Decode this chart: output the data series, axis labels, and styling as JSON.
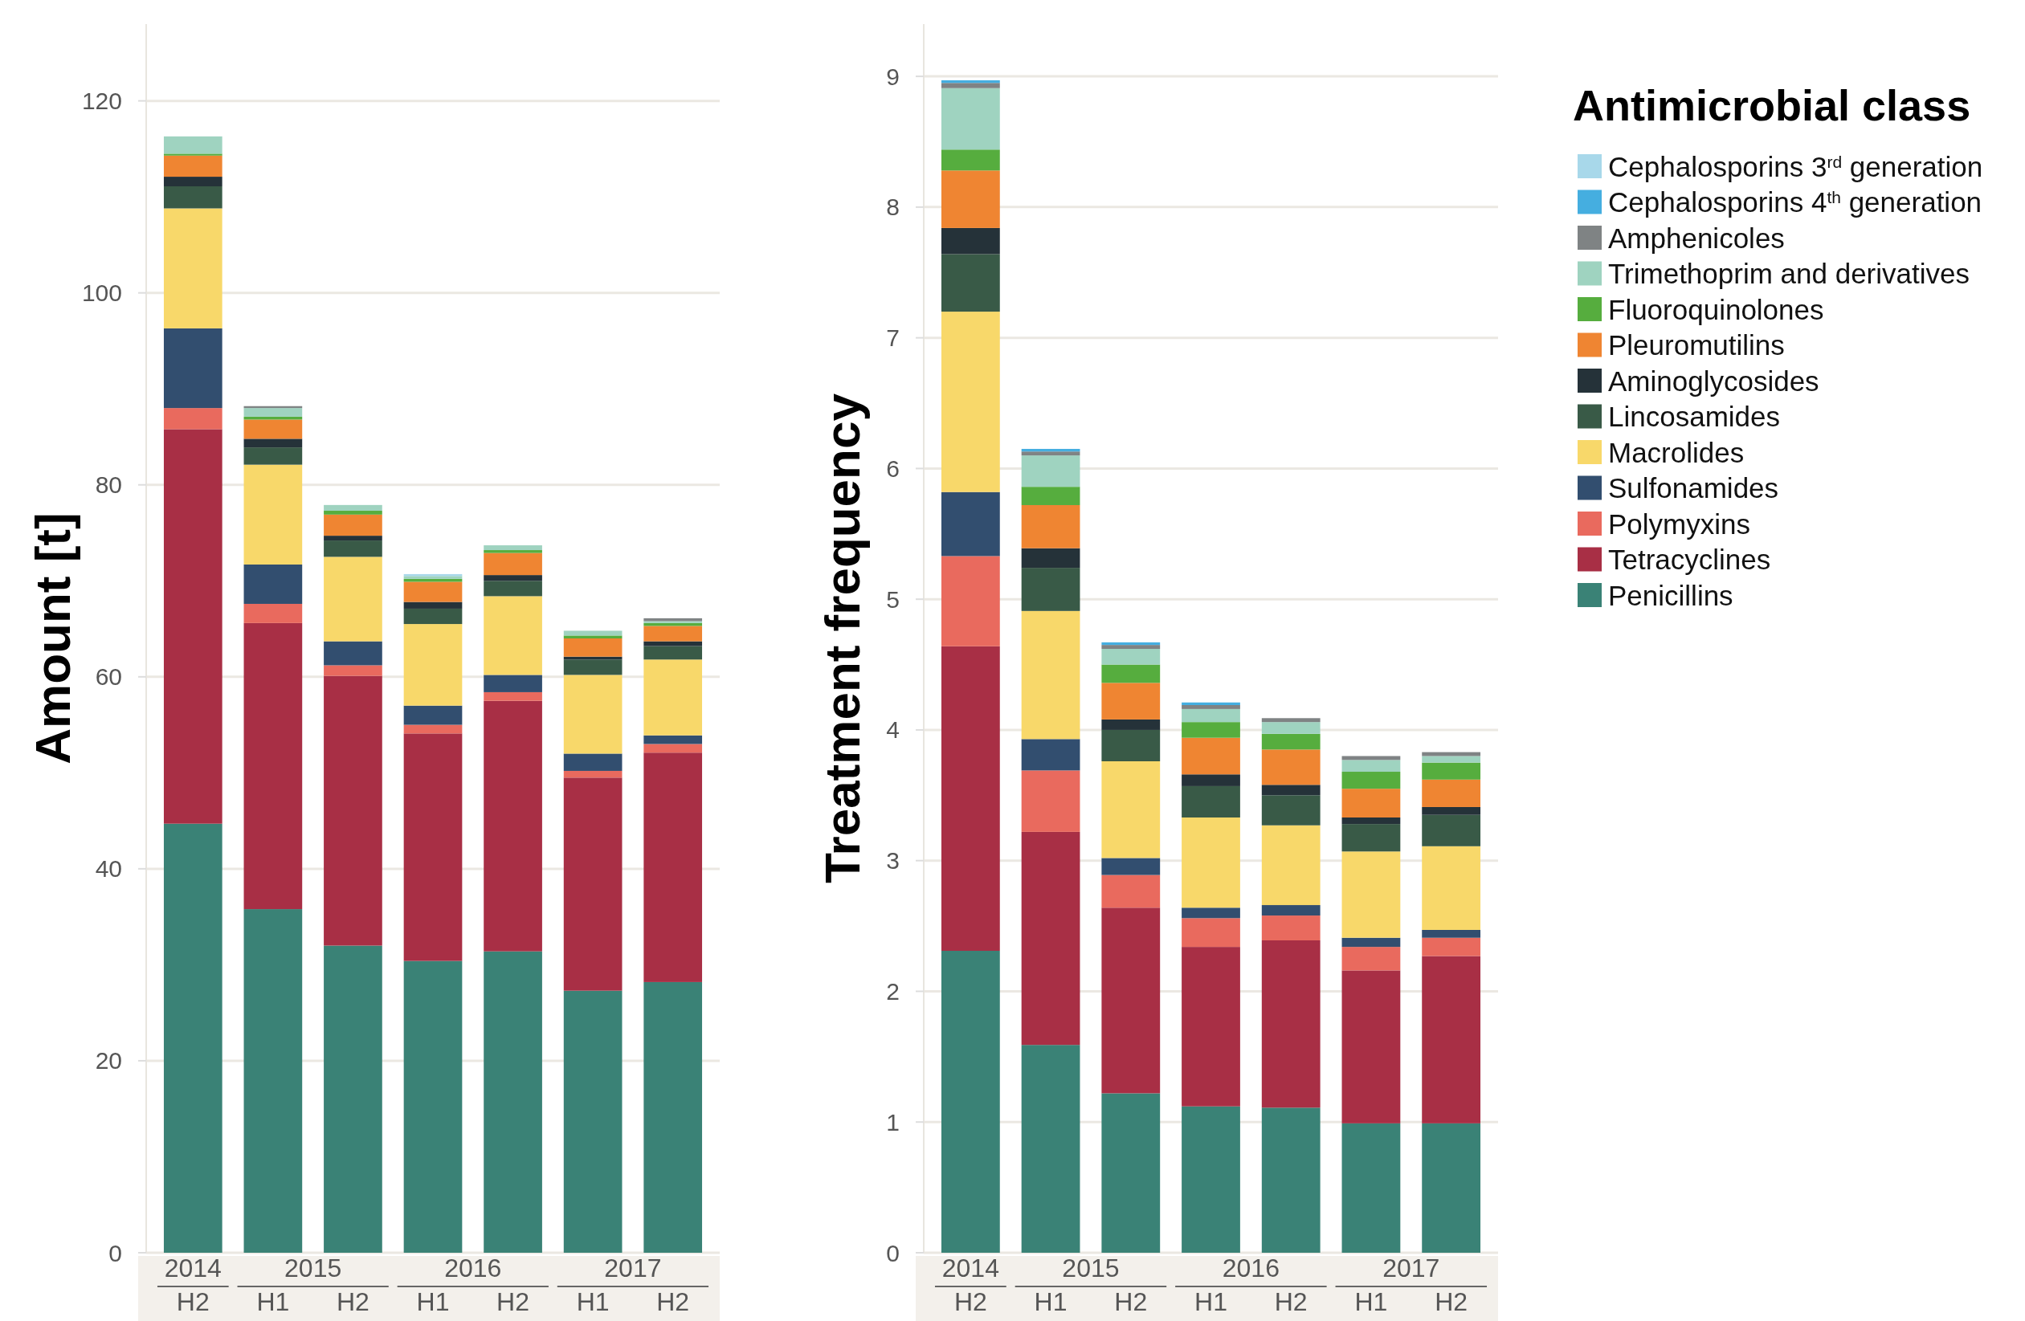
{
  "chart_data": [
    {
      "type": "bar",
      "stacked": true,
      "ylabel": "Amount [t]",
      "categories": [
        "H2",
        "H1",
        "H2",
        "H1",
        "H2",
        "H1",
        "H2"
      ],
      "annotations": [
        "2014",
        "2015",
        "2016",
        "2017"
      ],
      "ylim": [
        0,
        128
      ],
      "yticks": [
        0,
        20,
        40,
        60,
        80,
        100,
        120
      ],
      "grid": "y",
      "series": [
        {
          "color": "#3a8276",
          "values": [
            44.7,
            35.8,
            32.0,
            30.4,
            31.4,
            27.3,
            28.2
          ]
        },
        {
          "color": "#a82f45",
          "values": [
            41.1,
            29.8,
            28.1,
            23.7,
            26.1,
            22.2,
            23.9
          ]
        },
        {
          "color": "#e96a5e",
          "values": [
            2.2,
            2.0,
            1.1,
            0.9,
            0.9,
            0.7,
            0.9
          ]
        },
        {
          "color": "#324e6f",
          "values": [
            8.3,
            4.1,
            2.5,
            2.0,
            1.8,
            1.8,
            0.9
          ]
        },
        {
          "color": "#f8d86a",
          "values": [
            12.5,
            10.4,
            8.8,
            8.5,
            8.2,
            8.2,
            7.9
          ]
        },
        {
          "color": "#395a47",
          "values": [
            2.3,
            1.8,
            1.7,
            1.6,
            1.6,
            1.6,
            1.4
          ]
        },
        {
          "color": "#253239",
          "values": [
            1.0,
            0.9,
            0.5,
            0.7,
            0.6,
            0.3,
            0.5
          ]
        },
        {
          "color": "#ef8532",
          "values": [
            2.2,
            2.0,
            2.2,
            2.1,
            2.3,
            1.9,
            1.6
          ]
        },
        {
          "color": "#56ad3e",
          "values": [
            0.2,
            0.3,
            0.4,
            0.3,
            0.3,
            0.3,
            0.3
          ]
        },
        {
          "color": "#9fd3c0",
          "values": [
            1.8,
            0.9,
            0.6,
            0.3,
            0.5,
            0.5,
            0.2
          ]
        },
        {
          "color": "#7f8384",
          "values": [
            0,
            0.2,
            0,
            0,
            0,
            0,
            0.3
          ]
        },
        {
          "color": "#45aee0",
          "values": [
            0,
            0,
            0,
            0,
            0,
            0,
            0
          ]
        },
        {
          "color": "#a8d8ea",
          "values": [
            0,
            0,
            0,
            0.2,
            0,
            0,
            0
          ]
        }
      ]
    },
    {
      "type": "bar",
      "stacked": true,
      "ylabel": "Treatment frequency",
      "categories": [
        "H2",
        "H1",
        "H2",
        "H1",
        "H2",
        "H1",
        "H2"
      ],
      "annotations": [
        "2014",
        "2015",
        "2016",
        "2017"
      ],
      "ylim": [
        0,
        9.4
      ],
      "yticks": [
        0,
        1,
        2,
        3,
        4,
        5,
        6,
        7,
        8,
        9
      ],
      "grid": "y",
      "legend": "right",
      "legend_title": "Antimicrobial class",
      "series": [
        {
          "name": "Penicillins",
          "color": "#3a8276",
          "values": [
            2.31,
            1.59,
            1.22,
            1.12,
            1.11,
            0.99,
            0.99
          ]
        },
        {
          "name": "Tetracyclines",
          "color": "#a82f45",
          "values": [
            2.33,
            1.63,
            1.42,
            1.22,
            1.28,
            1.17,
            1.28
          ]
        },
        {
          "name": "Polymyxins",
          "color": "#e96a5e",
          "values": [
            0.69,
            0.47,
            0.25,
            0.22,
            0.19,
            0.18,
            0.14
          ]
        },
        {
          "name": "Sulfonamides",
          "color": "#324e6f",
          "values": [
            0.49,
            0.24,
            0.13,
            0.08,
            0.08,
            0.07,
            0.06
          ]
        },
        {
          "name": "Macrolides",
          "color": "#f8d86a",
          "values": [
            1.38,
            0.98,
            0.74,
            0.69,
            0.61,
            0.66,
            0.64
          ]
        },
        {
          "name": "Lincosamides",
          "color": "#395a47",
          "values": [
            0.44,
            0.33,
            0.24,
            0.24,
            0.23,
            0.21,
            0.24
          ]
        },
        {
          "name": "Aminoglycosides",
          "color": "#253239",
          "values": [
            0.2,
            0.15,
            0.08,
            0.09,
            0.08,
            0.05,
            0.06
          ]
        },
        {
          "name": "Pleuromutilins",
          "color": "#ef8532",
          "values": [
            0.44,
            0.33,
            0.28,
            0.28,
            0.27,
            0.22,
            0.21
          ]
        },
        {
          "name": "Fluoroquinolones",
          "color": "#56ad3e",
          "values": [
            0.16,
            0.14,
            0.14,
            0.12,
            0.12,
            0.13,
            0.13
          ]
        },
        {
          "name": "Trimethoprim and derivatives",
          "color": "#9fd3c0",
          "values": [
            0.47,
            0.24,
            0.12,
            0.1,
            0.09,
            0.09,
            0.05
          ]
        },
        {
          "name": "Amphenicoles",
          "color": "#7f8384",
          "values": [
            0.04,
            0.03,
            0.03,
            0.03,
            0.03,
            0.03,
            0.03
          ]
        },
        {
          "name": "Cephalosporins 4$^{th}$ generation",
          "color": "#45aee0",
          "values": [
            0.02,
            0.02,
            0.02,
            0.02,
            0,
            0,
            0
          ]
        },
        {
          "name": "Cephalosporins 3$^{rd}$ generation",
          "color": "#a8d8ea",
          "values": [
            0,
            0,
            0,
            0,
            0,
            0,
            0
          ]
        }
      ]
    }
  ]
}
